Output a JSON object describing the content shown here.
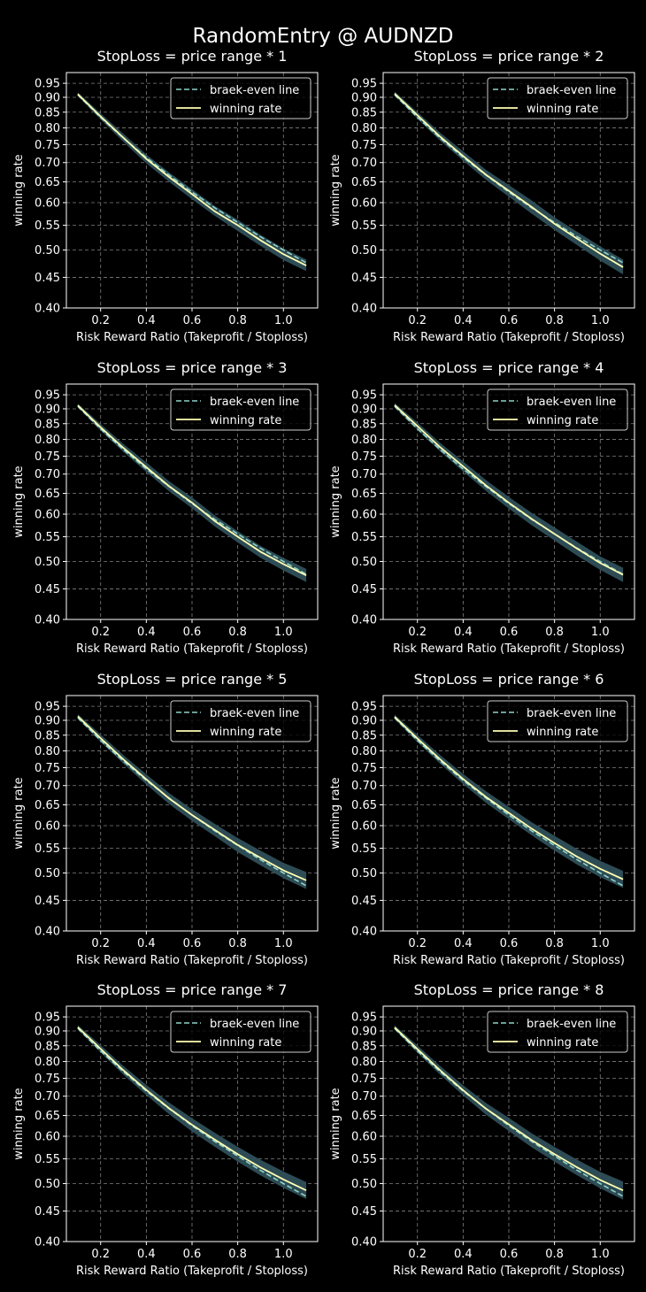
{
  "figure": {
    "suptitle": "RandomEntry @ AUDNZD",
    "colors": {
      "background": "#000000",
      "axes_edge": "#ffffff",
      "grid": "#808080",
      "breakeven_line": "#8dd3c7",
      "winning_rate_line": "#ffffb3",
      "confidence_band": "#2f4f58"
    }
  },
  "chart_data": [
    {
      "type": "line",
      "title": "StopLoss = price range * 1",
      "xlabel": "Risk Reward Ratio (Takeprofit / Stoploss)",
      "ylabel": "winning rate",
      "yscale": "log",
      "xlim": [
        0.05,
        1.15
      ],
      "ylim": [
        0.4,
        0.99
      ],
      "xticks": [
        "0.2",
        "0.4",
        "0.6",
        "0.8",
        "1.0"
      ],
      "yticks": [
        "0.95",
        "0.90",
        "0.85",
        "0.80",
        "0.75",
        "0.70",
        "0.65",
        "0.60",
        "0.55",
        "0.50",
        "0.45",
        "0.40"
      ],
      "grid": true,
      "legend_position": "upper-right",
      "x": [
        0.1,
        0.2,
        0.3,
        0.4,
        0.5,
        0.6,
        0.7,
        0.8,
        0.9,
        1.0,
        1.1
      ],
      "series": [
        {
          "name": "braek-even line",
          "style": "dashed",
          "values": [
            0.909,
            0.833,
            0.769,
            0.714,
            0.667,
            0.625,
            0.588,
            0.556,
            0.526,
            0.5,
            0.476
          ]
        },
        {
          "name": "winning rate",
          "style": "solid",
          "values": [
            0.911,
            0.836,
            0.77,
            0.71,
            0.662,
            0.62,
            0.58,
            0.55,
            0.519,
            0.492,
            0.471
          ],
          "band_low": [
            0.904,
            0.826,
            0.758,
            0.698,
            0.65,
            0.608,
            0.57,
            0.538,
            0.508,
            0.481,
            0.461
          ],
          "band_high": [
            0.918,
            0.846,
            0.782,
            0.722,
            0.674,
            0.632,
            0.592,
            0.562,
            0.53,
            0.503,
            0.482
          ]
        }
      ]
    },
    {
      "type": "line",
      "title": "StopLoss = price range * 2",
      "xlabel": "Risk Reward Ratio (Takeprofit / Stoploss)",
      "ylabel": "winning rate",
      "yscale": "log",
      "xlim": [
        0.05,
        1.15
      ],
      "ylim": [
        0.4,
        0.99
      ],
      "xticks": [
        "0.2",
        "0.4",
        "0.6",
        "0.8",
        "1.0"
      ],
      "yticks": [
        "0.95",
        "0.90",
        "0.85",
        "0.80",
        "0.75",
        "0.70",
        "0.65",
        "0.60",
        "0.55",
        "0.50",
        "0.45",
        "0.40"
      ],
      "grid": true,
      "legend_position": "upper-right",
      "x": [
        0.1,
        0.2,
        0.3,
        0.4,
        0.5,
        0.6,
        0.7,
        0.8,
        0.9,
        1.0,
        1.1
      ],
      "series": [
        {
          "name": "braek-even line",
          "style": "dashed",
          "values": [
            0.909,
            0.833,
            0.769,
            0.714,
            0.667,
            0.625,
            0.588,
            0.556,
            0.526,
            0.5,
            0.476
          ]
        },
        {
          "name": "winning rate",
          "style": "solid",
          "values": [
            0.913,
            0.84,
            0.773,
            0.718,
            0.668,
            0.628,
            0.59,
            0.553,
            0.522,
            0.493,
            0.468
          ],
          "band_low": [
            0.905,
            0.829,
            0.761,
            0.705,
            0.655,
            0.614,
            0.575,
            0.54,
            0.509,
            0.48,
            0.455
          ],
          "band_high": [
            0.921,
            0.85,
            0.785,
            0.731,
            0.681,
            0.642,
            0.605,
            0.567,
            0.536,
            0.507,
            0.482
          ]
        }
      ]
    },
    {
      "type": "line",
      "title": "StopLoss = price range * 3",
      "xlabel": "Risk Reward Ratio (Takeprofit / Stoploss)",
      "ylabel": "winning rate",
      "yscale": "log",
      "xlim": [
        0.05,
        1.15
      ],
      "ylim": [
        0.4,
        0.99
      ],
      "xticks": [
        "0.2",
        "0.4",
        "0.6",
        "0.8",
        "1.0"
      ],
      "yticks": [
        "0.95",
        "0.90",
        "0.85",
        "0.80",
        "0.75",
        "0.70",
        "0.65",
        "0.60",
        "0.55",
        "0.50",
        "0.45",
        "0.40"
      ],
      "grid": true,
      "legend_position": "upper-right",
      "x": [
        0.1,
        0.2,
        0.3,
        0.4,
        0.5,
        0.6,
        0.7,
        0.8,
        0.9,
        1.0,
        1.1
      ],
      "series": [
        {
          "name": "braek-even line",
          "style": "dashed",
          "values": [
            0.909,
            0.833,
            0.769,
            0.714,
            0.667,
            0.625,
            0.588,
            0.556,
            0.526,
            0.5,
            0.476
          ]
        },
        {
          "name": "winning rate",
          "style": "solid",
          "values": [
            0.912,
            0.838,
            0.774,
            0.719,
            0.668,
            0.627,
            0.584,
            0.55,
            0.519,
            0.495,
            0.474
          ],
          "band_low": [
            0.905,
            0.827,
            0.762,
            0.706,
            0.655,
            0.614,
            0.572,
            0.538,
            0.507,
            0.483,
            0.462
          ],
          "band_high": [
            0.919,
            0.849,
            0.786,
            0.732,
            0.681,
            0.64,
            0.597,
            0.562,
            0.531,
            0.507,
            0.486
          ]
        }
      ]
    },
    {
      "type": "line",
      "title": "StopLoss = price range * 4",
      "xlabel": "Risk Reward Ratio (Takeprofit / Stoploss)",
      "ylabel": "winning rate",
      "yscale": "log",
      "xlim": [
        0.05,
        1.15
      ],
      "ylim": [
        0.4,
        0.99
      ],
      "xticks": [
        "0.2",
        "0.4",
        "0.6",
        "0.8",
        "1.0"
      ],
      "yticks": [
        "0.95",
        "0.90",
        "0.85",
        "0.80",
        "0.75",
        "0.70",
        "0.65",
        "0.60",
        "0.55",
        "0.50",
        "0.45",
        "0.40"
      ],
      "grid": true,
      "legend_position": "upper-right",
      "x": [
        0.1,
        0.2,
        0.3,
        0.4,
        0.5,
        0.6,
        0.7,
        0.8,
        0.9,
        1.0,
        1.1
      ],
      "series": [
        {
          "name": "braek-even line",
          "style": "dashed",
          "values": [
            0.909,
            0.833,
            0.769,
            0.714,
            0.667,
            0.625,
            0.588,
            0.556,
            0.526,
            0.5,
            0.476
          ]
        },
        {
          "name": "winning rate",
          "style": "solid",
          "values": [
            0.913,
            0.842,
            0.776,
            0.721,
            0.67,
            0.627,
            0.589,
            0.556,
            0.525,
            0.497,
            0.475
          ],
          "band_low": [
            0.905,
            0.83,
            0.763,
            0.707,
            0.656,
            0.613,
            0.575,
            0.542,
            0.511,
            0.484,
            0.462
          ],
          "band_high": [
            0.921,
            0.854,
            0.789,
            0.735,
            0.684,
            0.641,
            0.603,
            0.57,
            0.539,
            0.51,
            0.488
          ]
        }
      ]
    },
    {
      "type": "line",
      "title": "StopLoss = price range * 5",
      "xlabel": "Risk Reward Ratio (Takeprofit / Stoploss)",
      "ylabel": "winning rate",
      "yscale": "log",
      "xlim": [
        0.05,
        1.15
      ],
      "ylim": [
        0.4,
        0.99
      ],
      "xticks": [
        "0.2",
        "0.4",
        "0.6",
        "0.8",
        "1.0"
      ],
      "yticks": [
        "0.95",
        "0.90",
        "0.85",
        "0.80",
        "0.75",
        "0.70",
        "0.65",
        "0.60",
        "0.55",
        "0.50",
        "0.45",
        "0.40"
      ],
      "grid": true,
      "legend_position": "upper-right",
      "x": [
        0.1,
        0.2,
        0.3,
        0.4,
        0.5,
        0.6,
        0.7,
        0.8,
        0.9,
        1.0,
        1.1
      ],
      "series": [
        {
          "name": "braek-even line",
          "style": "dashed",
          "values": [
            0.909,
            0.833,
            0.769,
            0.714,
            0.667,
            0.625,
            0.588,
            0.556,
            0.526,
            0.5,
            0.476
          ]
        },
        {
          "name": "winning rate",
          "style": "solid",
          "values": [
            0.914,
            0.84,
            0.774,
            0.717,
            0.666,
            0.625,
            0.59,
            0.557,
            0.53,
            0.505,
            0.486
          ],
          "band_low": [
            0.906,
            0.828,
            0.761,
            0.703,
            0.652,
            0.611,
            0.576,
            0.542,
            0.515,
            0.49,
            0.47
          ],
          "band_high": [
            0.922,
            0.852,
            0.787,
            0.731,
            0.68,
            0.639,
            0.604,
            0.572,
            0.545,
            0.52,
            0.502
          ]
        }
      ]
    },
    {
      "type": "line",
      "title": "StopLoss = price range * 6",
      "xlabel": "Risk Reward Ratio (Takeprofit / Stoploss)",
      "ylabel": "winning rate",
      "yscale": "log",
      "xlim": [
        0.05,
        1.15
      ],
      "ylim": [
        0.4,
        0.99
      ],
      "xticks": [
        "0.2",
        "0.4",
        "0.6",
        "0.8",
        "1.0"
      ],
      "yticks": [
        "0.95",
        "0.90",
        "0.85",
        "0.80",
        "0.75",
        "0.70",
        "0.65",
        "0.60",
        "0.55",
        "0.50",
        "0.45",
        "0.40"
      ],
      "grid": true,
      "legend_position": "upper-right",
      "x": [
        0.1,
        0.2,
        0.3,
        0.4,
        0.5,
        0.6,
        0.7,
        0.8,
        0.9,
        1.0,
        1.1
      ],
      "series": [
        {
          "name": "braek-even line",
          "style": "dashed",
          "values": [
            0.909,
            0.833,
            0.769,
            0.714,
            0.667,
            0.625,
            0.588,
            0.556,
            0.526,
            0.5,
            0.476
          ]
        },
        {
          "name": "winning rate",
          "style": "solid",
          "values": [
            0.912,
            0.839,
            0.774,
            0.718,
            0.67,
            0.63,
            0.593,
            0.561,
            0.532,
            0.508,
            0.488
          ],
          "band_low": [
            0.904,
            0.827,
            0.761,
            0.704,
            0.655,
            0.615,
            0.578,
            0.545,
            0.516,
            0.492,
            0.472
          ],
          "band_high": [
            0.92,
            0.851,
            0.787,
            0.732,
            0.685,
            0.645,
            0.608,
            0.577,
            0.548,
            0.524,
            0.504
          ]
        }
      ]
    },
    {
      "type": "line",
      "title": "StopLoss = price range * 7",
      "xlabel": "Risk Reward Ratio (Takeprofit / Stoploss)",
      "ylabel": "winning rate",
      "yscale": "log",
      "xlim": [
        0.05,
        1.15
      ],
      "ylim": [
        0.4,
        0.99
      ],
      "xticks": [
        "0.2",
        "0.4",
        "0.6",
        "0.8",
        "1.0"
      ],
      "yticks": [
        "0.95",
        "0.90",
        "0.85",
        "0.80",
        "0.75",
        "0.70",
        "0.65",
        "0.60",
        "0.55",
        "0.50",
        "0.45",
        "0.40"
      ],
      "grid": true,
      "legend_position": "upper-right",
      "x": [
        0.1,
        0.2,
        0.3,
        0.4,
        0.5,
        0.6,
        0.7,
        0.8,
        0.9,
        1.0,
        1.1
      ],
      "series": [
        {
          "name": "braek-even line",
          "style": "dashed",
          "values": [
            0.909,
            0.833,
            0.769,
            0.714,
            0.667,
            0.625,
            0.588,
            0.556,
            0.526,
            0.5,
            0.476
          ]
        },
        {
          "name": "winning rate",
          "style": "solid",
          "values": [
            0.913,
            0.84,
            0.773,
            0.717,
            0.668,
            0.627,
            0.592,
            0.56,
            0.532,
            0.508,
            0.487
          ],
          "band_low": [
            0.905,
            0.828,
            0.76,
            0.703,
            0.653,
            0.611,
            0.576,
            0.544,
            0.516,
            0.492,
            0.471
          ],
          "band_high": [
            0.921,
            0.852,
            0.786,
            0.731,
            0.683,
            0.643,
            0.608,
            0.576,
            0.548,
            0.524,
            0.503
          ]
        }
      ]
    },
    {
      "type": "line",
      "title": "StopLoss = price range * 8",
      "xlabel": "Risk Reward Ratio (Takeprofit / Stoploss)",
      "ylabel": "winning rate",
      "yscale": "log",
      "xlim": [
        0.05,
        1.15
      ],
      "ylim": [
        0.4,
        0.99
      ],
      "xticks": [
        "0.2",
        "0.4",
        "0.6",
        "0.8",
        "1.0"
      ],
      "yticks": [
        "0.95",
        "0.90",
        "0.85",
        "0.80",
        "0.75",
        "0.70",
        "0.65",
        "0.60",
        "0.55",
        "0.50",
        "0.45",
        "0.40"
      ],
      "grid": true,
      "legend_position": "upper-right",
      "x": [
        0.1,
        0.2,
        0.3,
        0.4,
        0.5,
        0.6,
        0.7,
        0.8,
        0.9,
        1.0,
        1.1
      ],
      "series": [
        {
          "name": "braek-even line",
          "style": "dashed",
          "values": [
            0.909,
            0.833,
            0.769,
            0.714,
            0.667,
            0.625,
            0.588,
            0.556,
            0.526,
            0.5,
            0.476
          ]
        },
        {
          "name": "winning rate",
          "style": "solid",
          "values": [
            0.912,
            0.839,
            0.773,
            0.716,
            0.667,
            0.628,
            0.591,
            0.56,
            0.532,
            0.507,
            0.487
          ],
          "band_low": [
            0.904,
            0.827,
            0.76,
            0.702,
            0.652,
            0.612,
            0.575,
            0.544,
            0.516,
            0.491,
            0.47
          ],
          "band_high": [
            0.92,
            0.851,
            0.786,
            0.73,
            0.682,
            0.644,
            0.607,
            0.576,
            0.548,
            0.523,
            0.504
          ]
        }
      ]
    }
  ]
}
